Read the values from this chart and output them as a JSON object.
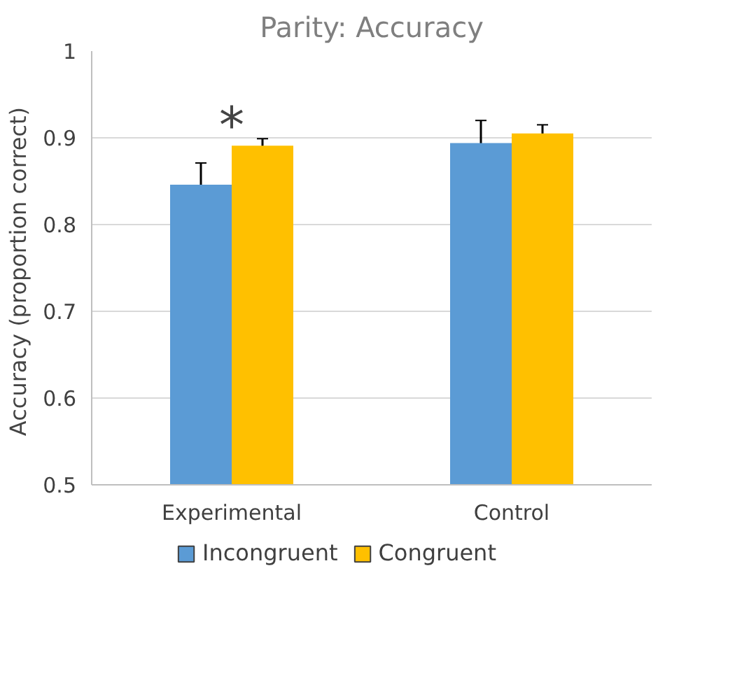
{
  "chart_data": {
    "type": "bar",
    "title": "Parity: Accuracy",
    "ylabel": "Accuracy (proportion  correct)",
    "categories": [
      "Experimental",
      "Control"
    ],
    "series": [
      {
        "name": "Incongruent",
        "color": "#5b9bd5",
        "values": [
          0.846,
          0.894
        ],
        "errors": [
          0.025,
          0.026
        ]
      },
      {
        "name": "Congruent",
        "color": "#ffc000",
        "values": [
          0.891,
          0.905
        ],
        "errors": [
          0.008,
          0.01
        ]
      }
    ],
    "ylim": [
      0.5,
      1
    ],
    "yticks": [
      {
        "value": 0.5,
        "label": "0.5"
      },
      {
        "value": 0.6,
        "label": "0.6"
      },
      {
        "value": 0.7,
        "label": "0.7"
      },
      {
        "value": 0.8,
        "label": "0.8"
      },
      {
        "value": 0.9,
        "label": "0.9"
      },
      {
        "value": 1,
        "label": "1"
      }
    ],
    "grid": "y",
    "legend": "bottom",
    "annotations": [
      {
        "text": "*",
        "x": "Experimental",
        "y": 0.88
      }
    ]
  }
}
